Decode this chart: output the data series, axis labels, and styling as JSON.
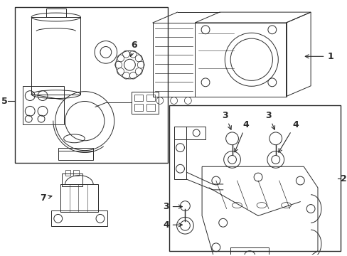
{
  "bg_color": "#ffffff",
  "line_color": "#2a2a2a",
  "fig_width": 4.89,
  "fig_height": 3.6,
  "dpi": 100,
  "lw": 0.7
}
